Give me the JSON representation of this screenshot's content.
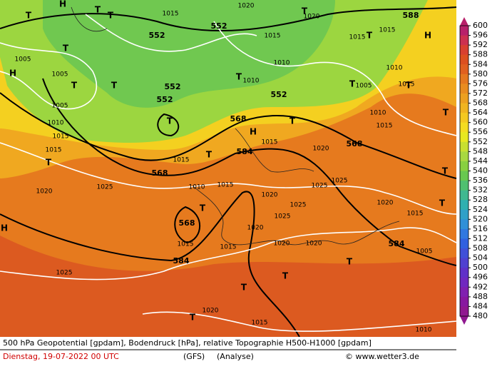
{
  "map": {
    "geopotential_labels": [
      "552",
      "552",
      "552",
      "552",
      "552",
      "568",
      "568",
      "584",
      "568",
      "568",
      "584",
      "584",
      "588"
    ],
    "pressure_labels": [
      "1015",
      "1020",
      "1020",
      "1015",
      "1015",
      "1015",
      "1005",
      "1005",
      "1005",
      "1010",
      "1015",
      "1015",
      "1010",
      "1010",
      "1005",
      "1010",
      "1015",
      "1010",
      "1015",
      "1020",
      "1015",
      "1015",
      "1025",
      "1020",
      "1010",
      "1015",
      "1020",
      "1025",
      "1025",
      "1020",
      "1025",
      "1025",
      "1020",
      "1015",
      "1015",
      "1020",
      "1020",
      "1015",
      "1005",
      "1025",
      "1020",
      "1015",
      "1010"
    ],
    "centers": [
      "T",
      "H",
      "T",
      "T",
      "H",
      "T",
      "H",
      "T",
      "T",
      "T",
      "T",
      "T",
      "T",
      "H",
      "T",
      "T",
      "T",
      "T",
      "T",
      "T",
      "T",
      "T",
      "T",
      "T",
      "H",
      "T",
      "T",
      "T"
    ]
  },
  "colorbar": {
    "labels": [
      600,
      596,
      592,
      588,
      584,
      580,
      576,
      572,
      568,
      564,
      560,
      556,
      552,
      548,
      544,
      540,
      536,
      532,
      528,
      524,
      520,
      516,
      512,
      508,
      504,
      500,
      496,
      492,
      488,
      484,
      480
    ],
    "colors": [
      "#b8206a",
      "#cc3050",
      "#d84030",
      "#dc5020",
      "#e06020",
      "#e47820",
      "#e88c20",
      "#eca020",
      "#f0b420",
      "#f4c820",
      "#f4dc20",
      "#e8e820",
      "#c8e030",
      "#a8d840",
      "#88d040",
      "#68c850",
      "#50c070",
      "#40b890",
      "#30b0b0",
      "#30a0c8",
      "#3090d8",
      "#3078e0",
      "#3060e0",
      "#4050d8",
      "#5040d0",
      "#6030c8",
      "#7028c0",
      "#8020b0",
      "#8818a0",
      "#901890"
    ]
  },
  "footer": {
    "description": "500 hPa Geopotential [gpdam], Bodendruck [hPa], relative Topographie H500-H1000 [gpdam]",
    "date": "Dienstag, 19-07-2022  00 UTC",
    "model": "(GFS)",
    "run": "(Analyse)",
    "credit": "© www.wetter3.de"
  }
}
